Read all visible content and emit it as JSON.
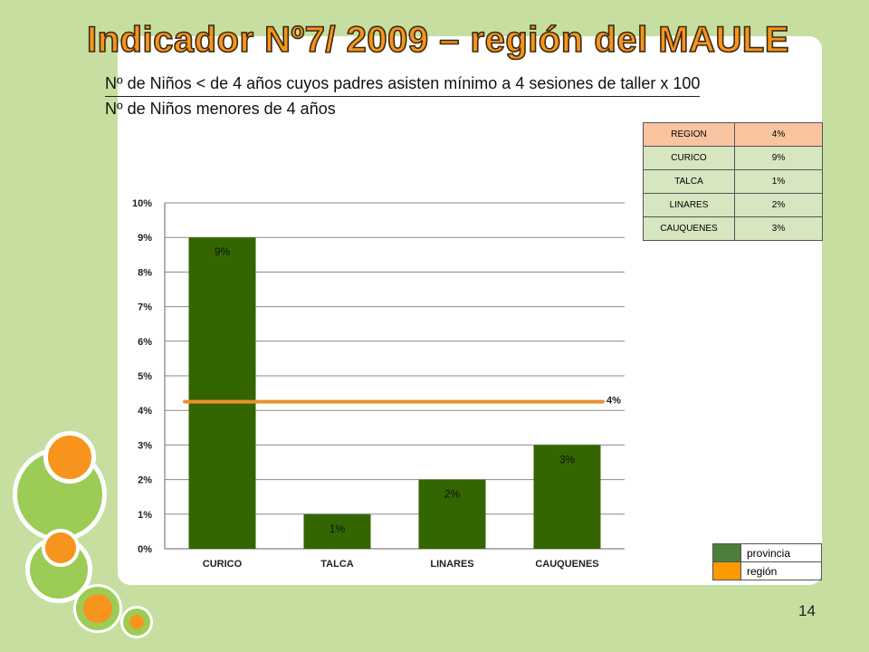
{
  "slide": {
    "title": "Indicador Nº7/ 2009 – región del MAULE",
    "formula_numerator": "Nº de Niños < de 4 años cuyos padres asisten mínimo a 4 sesiones de taller x 100",
    "formula_denominator": "Nº de Niños menores de 4 años",
    "page_number": "14"
  },
  "table": {
    "header": [
      "REGION",
      "4%"
    ],
    "rows": [
      [
        "CURICO",
        "9%"
      ],
      [
        "TALCA",
        "1%"
      ],
      [
        "LINARES",
        "2%"
      ],
      [
        "CAUQUENES",
        "3%"
      ]
    ]
  },
  "legend": {
    "items": [
      {
        "label": "provincia",
        "color": "#4e7f3a"
      },
      {
        "label": "región",
        "color": "#ff9900"
      }
    ]
  },
  "colors": {
    "bar": "#336600",
    "region_line": "#e8902e",
    "accent": "#f7941d",
    "background": "#c6dfa1"
  },
  "chart_data": {
    "type": "bar",
    "categories": [
      "CURICO",
      "TALCA",
      "LINARES",
      "CAUQUENES"
    ],
    "values": [
      9,
      1,
      2,
      3
    ],
    "value_labels": [
      "9%",
      "1%",
      "2%",
      "3%"
    ],
    "reference_line": {
      "value": 4.25,
      "label": "4%"
    },
    "ylim": [
      0,
      10
    ],
    "yticks": [
      "0%",
      "1%",
      "2%",
      "3%",
      "4%",
      "5%",
      "6%",
      "7%",
      "8%",
      "9%",
      "10%"
    ],
    "grid": true
  }
}
